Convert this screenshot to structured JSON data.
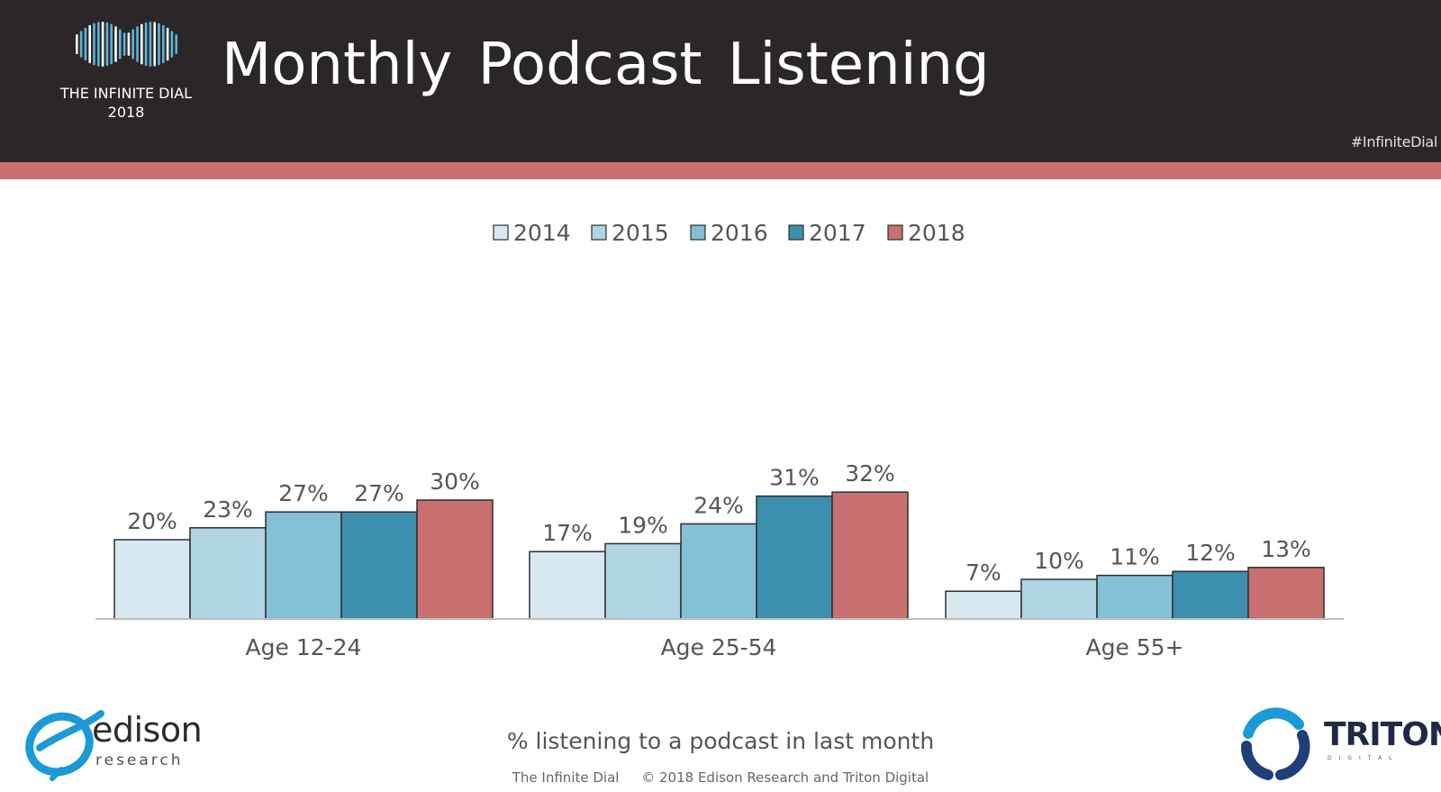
{
  "header": {
    "title": "Monthly Podcast Listening",
    "brand_name": "THE INFINITE DIAL",
    "brand_year": "2018",
    "hashtag": "#InfiniteDial",
    "band_color": "#2b2728",
    "stripe_color": "#c87170"
  },
  "chart_data": {
    "type": "bar",
    "title": "",
    "xlabel": "",
    "ylabel": "",
    "categories": [
      "Age 12-24",
      "Age 25-54",
      "Age 55+"
    ],
    "series": [
      {
        "name": "2014",
        "color": "#d6e9f0",
        "values": [
          20,
          17,
          7
        ],
        "labels": [
          "20%",
          "17%",
          "7%"
        ]
      },
      {
        "name": "2015",
        "color": "#b0d6e3",
        "values": [
          23,
          19,
          10
        ],
        "labels": [
          "23%",
          "19%",
          "10%"
        ]
      },
      {
        "name": "2016",
        "color": "#84c1d6",
        "values": [
          27,
          24,
          11
        ],
        "labels": [
          "27%",
          "24%",
          "11%"
        ]
      },
      {
        "name": "2017",
        "color": "#3d8fb0",
        "values": [
          27,
          31,
          12
        ],
        "labels": [
          "27%",
          "31%",
          "12%"
        ]
      },
      {
        "name": "2018",
        "color": "#c87170",
        "values": [
          30,
          32,
          13
        ],
        "labels": [
          "30%",
          "32%",
          "13%"
        ]
      }
    ],
    "ylim": [
      0,
      100
    ],
    "legend_position": "top-center",
    "grid": false,
    "data_labels": true
  },
  "footer": {
    "subtitle": "% listening to a podcast in last month",
    "note_left": "The Infinite Dial",
    "note_right": "© 2018 Edison Research and Triton Digital",
    "edison_name": "edison",
    "edison_sub": "research",
    "triton_name": "TRITON",
    "triton_sub": "DIGITAL"
  },
  "icons": {
    "brand": "infinity-dial-logo-icon",
    "edison": "edison-swirl-logo-icon",
    "triton": "triton-ring-logo-icon"
  }
}
